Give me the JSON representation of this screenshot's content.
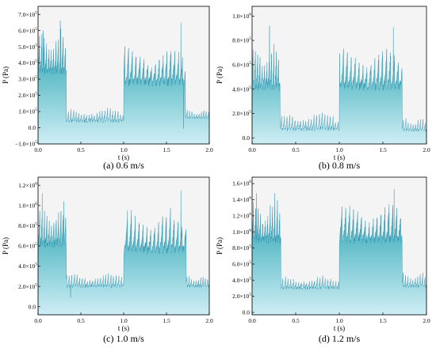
{
  "figure": {
    "colors": {
      "fill_top": "#0f9aa8",
      "fill_bottom": "#cfeef5",
      "plot_bg": "#f4f4f4",
      "stroke": "#2c8fae"
    }
  },
  "chart_data": [
    {
      "type": "area",
      "panel": "a",
      "caption": "(a) 0.6 m/s",
      "xlabel": "t (s)",
      "ylabel": "P (Pa)",
      "xlim": [
        0.0,
        2.0
      ],
      "ylim": [
        -100000,
        750000
      ],
      "x_ticks": [
        0.0,
        0.5,
        1.0,
        1.5,
        2.0
      ],
      "x_tick_labels": [
        "0.0",
        "0.5",
        "1.0",
        "1.5",
        "2.0"
      ],
      "y_ticks": [
        -100000,
        0,
        100000,
        200000,
        300000,
        400000,
        500000,
        600000,
        700000
      ],
      "y_tick_labels": [
        {
          "m": "−1.0×10",
          "e": "5"
        },
        {
          "m": "0.0",
          "e": ""
        },
        {
          "m": "1.0×10",
          "e": "5"
        },
        {
          "m": "2.0×10",
          "e": "5"
        },
        {
          "m": "3.0×10",
          "e": "5"
        },
        {
          "m": "4.0×10",
          "e": "5"
        },
        {
          "m": "5.0×10",
          "e": "5"
        },
        {
          "m": "6.0×10",
          "e": "5"
        },
        {
          "m": "7.0×10",
          "e": "5"
        }
      ],
      "grid": false,
      "series": [
        {
          "segments": [
            {
              "x0": 0.0,
              "x1": 0.33,
              "base": 350000,
              "peak": 600000,
              "amp": 180000,
              "cycles": 12,
              "phase": 0.3
            },
            {
              "x0": 0.33,
              "x1": 1.0,
              "base": 40000,
              "peak": 120000,
              "amp": 80000,
              "cycles": 22,
              "phase": 1.1
            },
            {
              "x0": 1.0,
              "x1": 1.72,
              "base": 280000,
              "peak": 500000,
              "amp": 200000,
              "cycles": 16,
              "phase": 0.7
            },
            {
              "x0": 1.72,
              "x1": 2.0,
              "base": 60000,
              "peak": 110000,
              "amp": 40000,
              "cycles": 10,
              "phase": 0.2
            }
          ],
          "spikes": [
            {
              "x": 0.06,
              "y": 600000
            },
            {
              "x": 0.26,
              "y": 660000
            },
            {
              "x": 1.67,
              "y": 650000
            },
            {
              "x": 1.7,
              "y": -5000
            }
          ]
        }
      ]
    },
    {
      "type": "area",
      "panel": "b",
      "caption": "(b) 0.8 m/s",
      "xlabel": "t (s)",
      "ylabel": "P (Pa)",
      "xlim": [
        0.0,
        2.0
      ],
      "ylim": [
        -50000,
        1080000
      ],
      "x_ticks": [
        0.0,
        0.5,
        1.0,
        1.5,
        2.0
      ],
      "x_tick_labels": [
        "0.0",
        "0.5",
        "1.0",
        "1.5",
        "2.0"
      ],
      "y_ticks": [
        0,
        200000,
        400000,
        600000,
        800000,
        1000000
      ],
      "y_tick_labels": [
        {
          "m": "0.0",
          "e": ""
        },
        {
          "m": "2.0×10",
          "e": "5"
        },
        {
          "m": "4.0×10",
          "e": "5"
        },
        {
          "m": "6.0×10",
          "e": "5"
        },
        {
          "m": "8.0×10",
          "e": "5"
        },
        {
          "m": "1.0×10",
          "e": "6"
        }
      ],
      "grid": false,
      "series": [
        {
          "segments": [
            {
              "x0": 0.0,
              "x1": 0.32,
              "base": 420000,
              "peak": 820000,
              "amp": 300000,
              "cycles": 12,
              "phase": 0.5
            },
            {
              "x0": 0.32,
              "x1": 1.0,
              "base": 70000,
              "peak": 210000,
              "amp": 120000,
              "cycles": 22,
              "phase": 1.3
            },
            {
              "x0": 1.0,
              "x1": 1.72,
              "base": 420000,
              "peak": 740000,
              "amp": 260000,
              "cycles": 16,
              "phase": 0.9
            },
            {
              "x0": 1.72,
              "x1": 2.0,
              "base": 60000,
              "peak": 160000,
              "amp": 70000,
              "cycles": 10,
              "phase": 0.4
            }
          ],
          "spikes": [
            {
              "x": 0.2,
              "y": 920000
            },
            {
              "x": 1.62,
              "y": 910000
            }
          ]
        }
      ]
    },
    {
      "type": "area",
      "panel": "c",
      "caption": "(c) 1.0 m/s",
      "xlabel": "t (s)",
      "ylabel": "P (Pa)",
      "xlim": [
        0.0,
        2.0
      ],
      "ylim": [
        -80000,
        1280000
      ],
      "x_ticks": [
        0.0,
        0.5,
        1.0,
        1.5,
        2.0
      ],
      "x_tick_labels": [
        "0.0",
        "0.5",
        "1.0",
        "1.5",
        "2.0"
      ],
      "y_ticks": [
        0,
        200000,
        400000,
        600000,
        800000,
        1000000,
        1200000
      ],
      "y_tick_labels": [
        {
          "m": "0.0",
          "e": ""
        },
        {
          "m": "2.0×10",
          "e": "5"
        },
        {
          "m": "4.0×10",
          "e": "5"
        },
        {
          "m": "6.0×10",
          "e": "5"
        },
        {
          "m": "8.0×10",
          "e": "5"
        },
        {
          "m": "1.0×10",
          "e": "6"
        },
        {
          "m": "1.2×10",
          "e": "6"
        }
      ],
      "grid": false,
      "series": [
        {
          "segments": [
            {
              "x0": 0.0,
              "x1": 0.33,
              "base": 620000,
              "peak": 1000000,
              "amp": 300000,
              "cycles": 12,
              "phase": 0.2
            },
            {
              "x0": 0.33,
              "x1": 1.0,
              "base": 200000,
              "peak": 330000,
              "amp": 120000,
              "cycles": 22,
              "phase": 0.8
            },
            {
              "x0": 1.0,
              "x1": 1.73,
              "base": 560000,
              "peak": 960000,
              "amp": 300000,
              "cycles": 16,
              "phase": 1.0
            },
            {
              "x0": 1.73,
              "x1": 2.0,
              "base": 200000,
              "peak": 310000,
              "amp": 110000,
              "cycles": 10,
              "phase": 0.6
            }
          ],
          "spikes": [
            {
              "x": 0.05,
              "y": 1120000
            },
            {
              "x": 0.3,
              "y": 1040000
            },
            {
              "x": 0.38,
              "y": 90000
            },
            {
              "x": 1.67,
              "y": 1150000
            }
          ]
        }
      ]
    },
    {
      "type": "area",
      "panel": "d",
      "caption": "(d) 1.2 m/s",
      "xlabel": "t (s)",
      "ylabel": "P (Pa)",
      "xlim": [
        0.0,
        2.0
      ],
      "ylim": [
        -30000,
        1680000
      ],
      "x_ticks": [
        0.0,
        0.5,
        1.0,
        1.5,
        2.0
      ],
      "x_tick_labels": [
        "0.0",
        "0.5",
        "1.0",
        "1.5",
        "2.0"
      ],
      "y_ticks": [
        0,
        200000,
        400000,
        600000,
        800000,
        1000000,
        1200000,
        1400000,
        1600000
      ],
      "y_tick_labels": [
        {
          "m": "0.0",
          "e": ""
        },
        {
          "m": "2.0×10",
          "e": "5"
        },
        {
          "m": "4.0×10",
          "e": "5"
        },
        {
          "m": "6.0×10",
          "e": "5"
        },
        {
          "m": "8.0×10",
          "e": "5"
        },
        {
          "m": "1.0×10",
          "e": "6"
        },
        {
          "m": "1.2×10",
          "e": "6"
        },
        {
          "m": "1.4×10",
          "e": "6"
        },
        {
          "m": "1.6×10",
          "e": "6"
        }
      ],
      "grid": false,
      "series": [
        {
          "segments": [
            {
              "x0": 0.0,
              "x1": 0.33,
              "base": 900000,
              "peak": 1400000,
              "amp": 420000,
              "cycles": 12,
              "phase": 0.4
            },
            {
              "x0": 0.33,
              "x1": 1.0,
              "base": 300000,
              "peak": 450000,
              "amp": 150000,
              "cycles": 22,
              "phase": 1.2
            },
            {
              "x0": 1.0,
              "x1": 1.72,
              "base": 900000,
              "peak": 1350000,
              "amp": 400000,
              "cycles": 16,
              "phase": 0.3
            },
            {
              "x0": 1.72,
              "x1": 2.0,
              "base": 320000,
              "peak": 500000,
              "amp": 150000,
              "cycles": 10,
              "phase": 0.5
            }
          ],
          "spikes": [
            {
              "x": 0.05,
              "y": 1480000
            },
            {
              "x": 0.26,
              "y": 1480000
            },
            {
              "x": 1.63,
              "y": 1530000
            }
          ]
        }
      ]
    }
  ]
}
